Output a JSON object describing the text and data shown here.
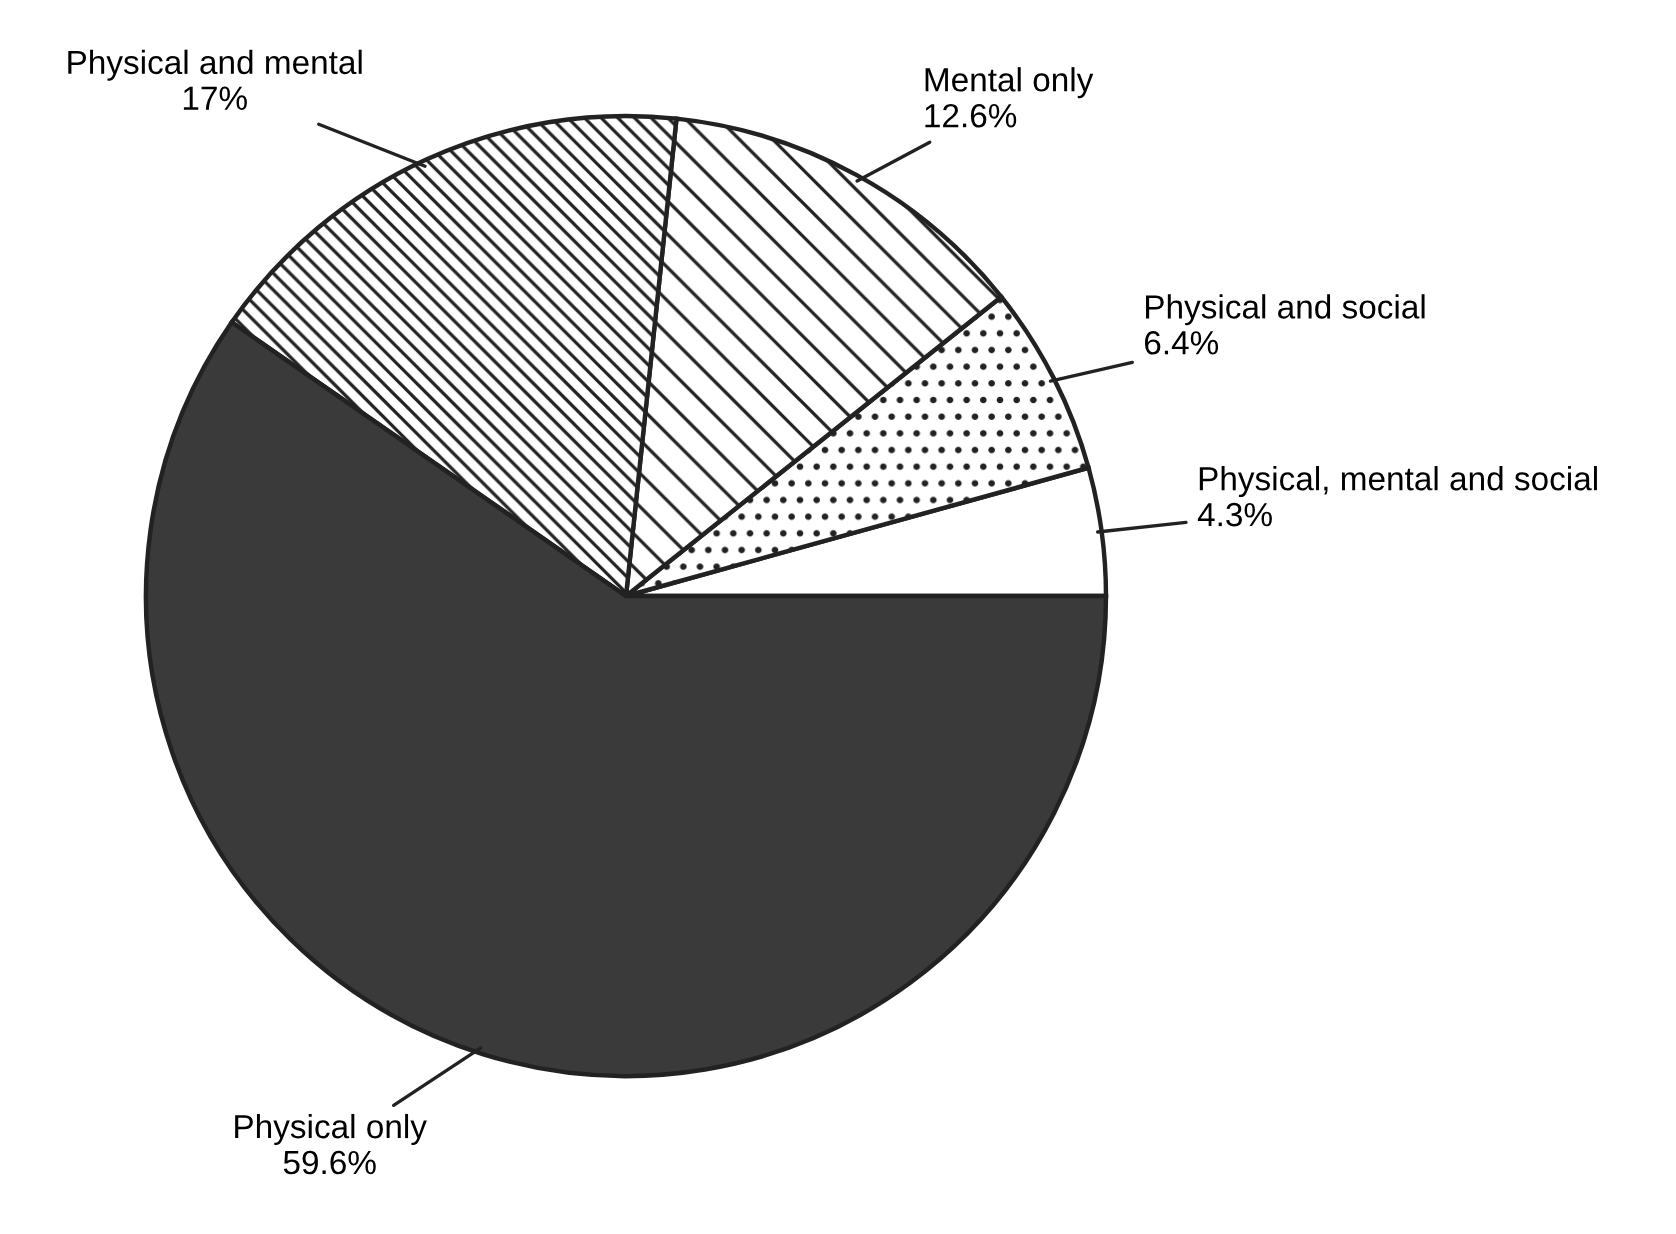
{
  "chart_data": {
    "type": "pie",
    "categories": [
      "Physical, mental and social",
      "Physical and social",
      "Mental only",
      "Physical and mental",
      "Physical only"
    ],
    "values": [
      4.3,
      6.4,
      12.6,
      17,
      59.6
    ],
    "value_labels": [
      "4.3%",
      "6.4%",
      "12.6%",
      "17%",
      "59.6%"
    ],
    "colors": [
      "#ffffff",
      "#ffffff",
      "#ffffff",
      "#ffffff",
      "#3a3a3a"
    ],
    "legend": false
  }
}
